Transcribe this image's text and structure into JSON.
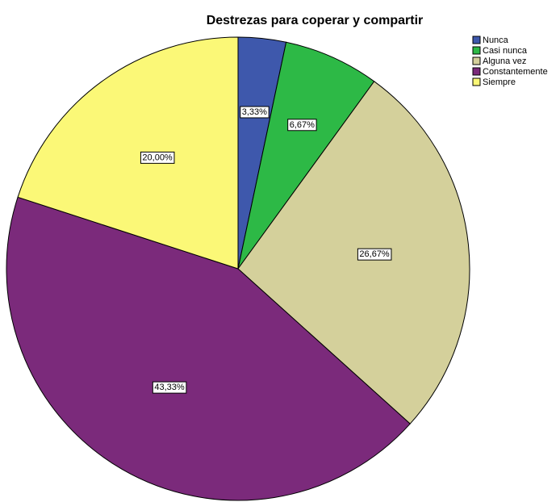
{
  "chart_data": {
    "type": "pie",
    "title": "Destrezas para coperar y compartir",
    "categories": [
      "Nunca",
      "Casi nunca",
      "Alguna vez",
      "Constantemente",
      "Siempre"
    ],
    "values": [
      3.33,
      6.67,
      26.67,
      43.33,
      20.0
    ],
    "value_labels": [
      "3,33%",
      "6,67%",
      "26,67%",
      "43,33%",
      "20,00%"
    ],
    "colors": [
      "#3e58ac",
      "#2db946",
      "#d4d09b",
      "#7b2a7b",
      "#fbf877"
    ],
    "legend": "top-right"
  }
}
